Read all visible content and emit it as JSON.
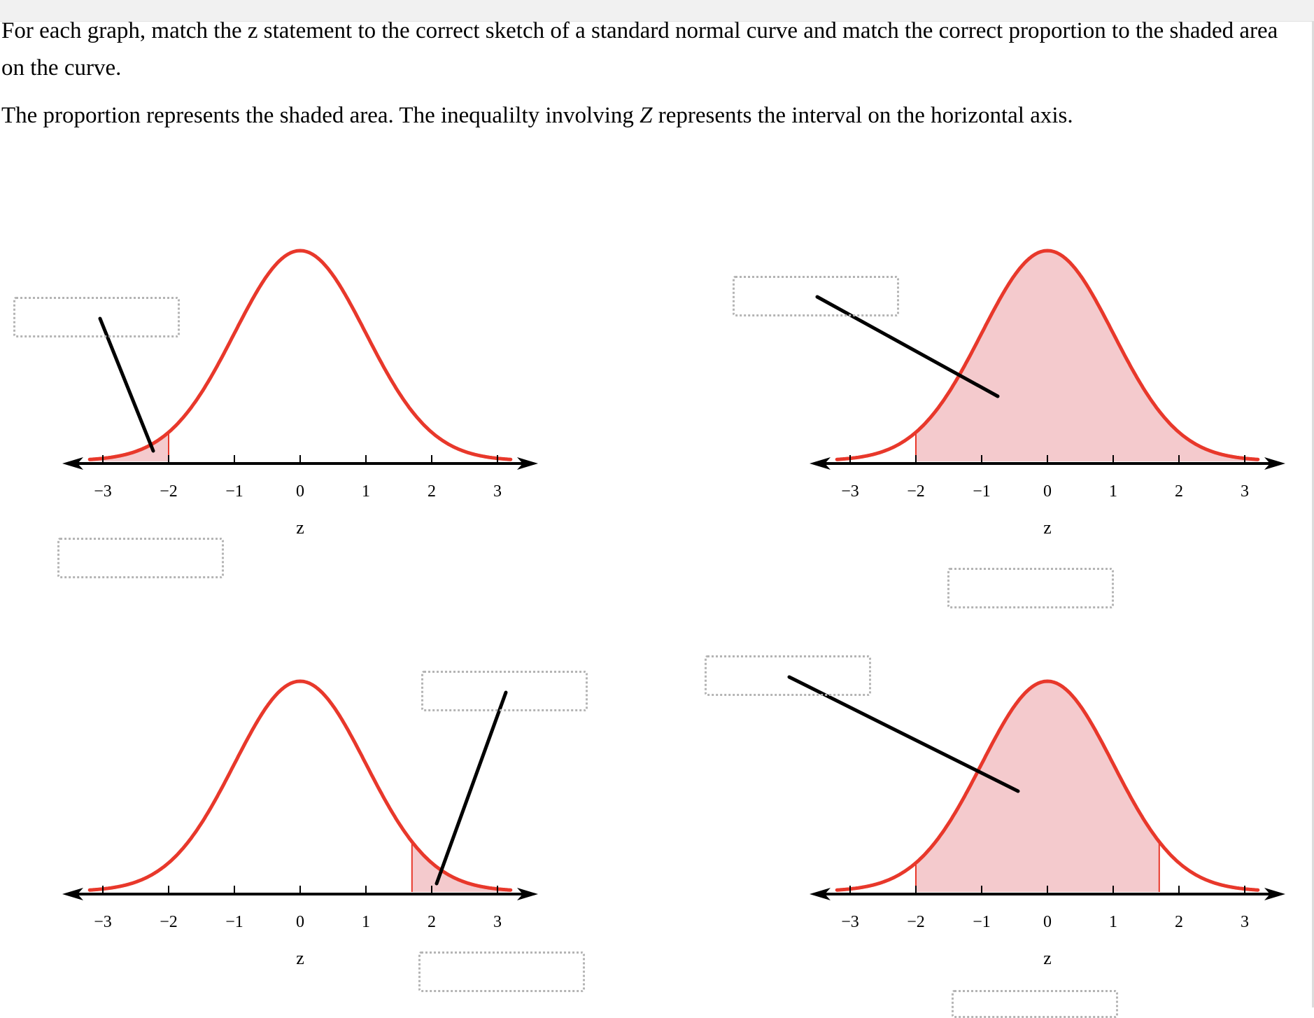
{
  "instructions": {
    "line1": "For each graph, match the z statement to the correct sketch of a standard normal curve and match the correct proportion to the shaded area on the curve.",
    "line2_pre": "The proportion represents the shaded area. The inequalilty involving ",
    "line2_var": "Z",
    "line2_post": " represents the interval on the horizontal axis."
  },
  "colors": {
    "curve": "#e8382b",
    "shade": "#f4cacd",
    "axis": "#000000",
    "dropbox_border": "#b4b4b4"
  },
  "graphs": [
    {
      "id": "top-left",
      "shade_from": -3.2,
      "shade_to": -2.0,
      "tick_labels": [
        "−3",
        "−2",
        "−1",
        "0",
        "1",
        "2",
        "3"
      ],
      "axis_title": "z"
    },
    {
      "id": "top-right",
      "shade_from": -2.0,
      "shade_to": 3.2,
      "tick_labels": [
        "−3",
        "−2",
        "−1",
        "0",
        "1",
        "2",
        "3"
      ],
      "axis_title": "z"
    },
    {
      "id": "bottom-left",
      "shade_from": 1.7,
      "shade_to": 3.2,
      "tick_labels": [
        "−3",
        "−2",
        "−1",
        "0",
        "1",
        "2",
        "3"
      ],
      "axis_title": "z"
    },
    {
      "id": "bottom-right",
      "shade_from": -2.0,
      "shade_to": 1.7,
      "tick_labels": [
        "−3",
        "−2",
        "−1",
        "0",
        "1",
        "2",
        "3"
      ],
      "axis_title": "z"
    }
  ],
  "drop_targets": {
    "top_left_statement": "",
    "top_left_proportion": "",
    "top_right_statement": "",
    "top_right_proportion": "",
    "bottom_left_statement": "",
    "bottom_left_proportion": "",
    "bottom_right_statement": "",
    "bottom_right_proportion": ""
  }
}
